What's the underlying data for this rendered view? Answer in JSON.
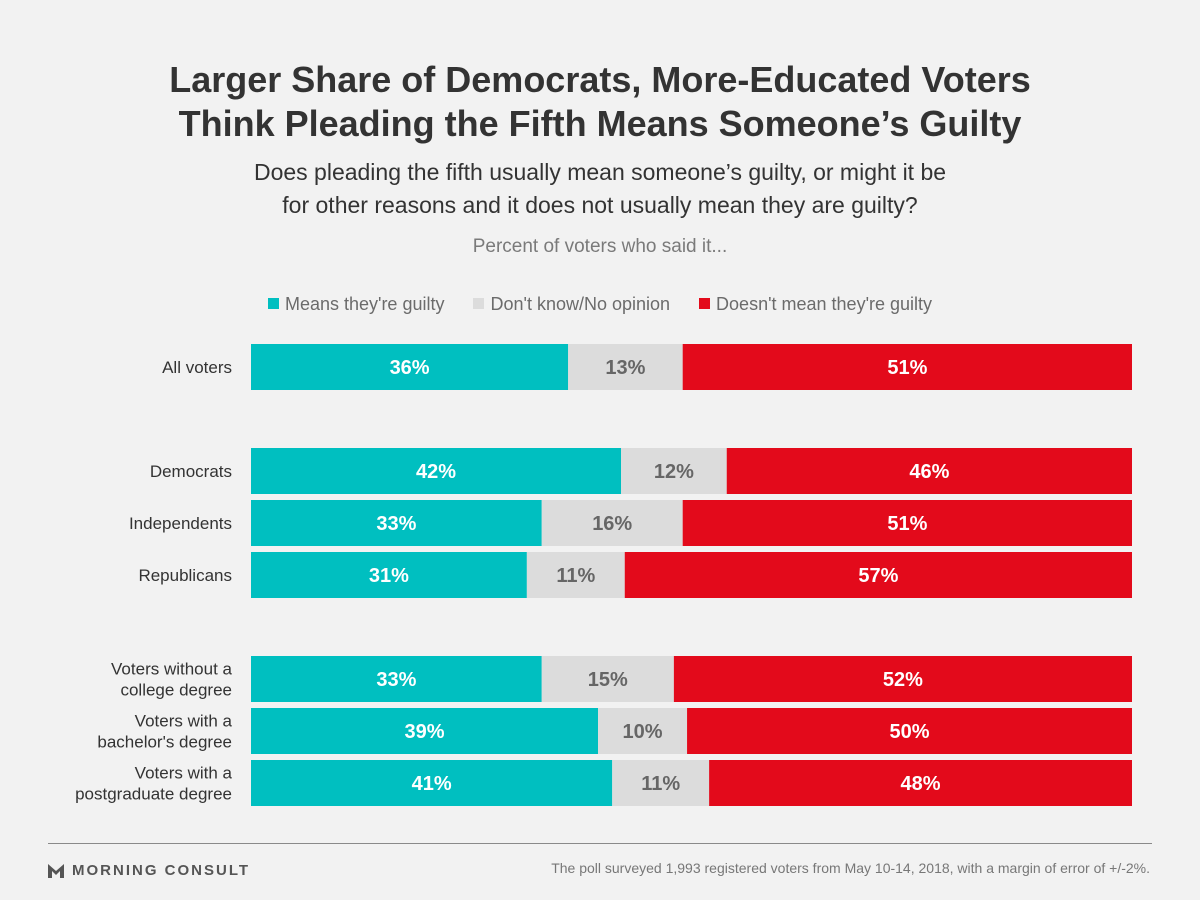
{
  "title_lines": [
    "Larger Share of Democrats, More-Educated Voters",
    "Think Pleading the Fifth Means Someone’s Guilty"
  ],
  "subtitle_lines": [
    "Does pleading the fifth usually mean someone’s guilty, or might it be",
    "for other reasons and it does not usually mean they are guilty?"
  ],
  "note": "Percent of voters who said it...",
  "legend": [
    {
      "label": "Means they're guilty",
      "color": "#00bfc0"
    },
    {
      "label": "Don't know/No opinion",
      "color": "#dcdcdc"
    },
    {
      "label": "Doesn't mean they're guilty",
      "color": "#e30a1b"
    }
  ],
  "chart_data": {
    "type": "bar",
    "orientation": "horizontal",
    "stacked": "100%",
    "categories": [
      [
        "All voters"
      ],
      [
        "Democrats"
      ],
      [
        "Independents"
      ],
      [
        "Republicans"
      ],
      [
        "Voters without a",
        "college degree"
      ],
      [
        "Voters with a",
        "bachelor's degree"
      ],
      [
        "Voters with a",
        "postgraduate degree"
      ]
    ],
    "groups": [
      [
        0
      ],
      [
        1,
        2,
        3
      ],
      [
        4,
        5,
        6
      ]
    ],
    "series": [
      {
        "name": "Means they're guilty",
        "color": "#00bfc0",
        "label_color": "#ffffff",
        "values": [
          36,
          42,
          33,
          31,
          33,
          39,
          41
        ]
      },
      {
        "name": "Don't know/No opinion",
        "color": "#dcdcdc",
        "label_color": "#666666",
        "values": [
          13,
          12,
          16,
          11,
          15,
          10,
          11
        ]
      },
      {
        "name": "Doesn't mean they're guilty",
        "color": "#e30a1b",
        "label_color": "#ffffff",
        "values": [
          51,
          46,
          51,
          57,
          52,
          50,
          48
        ]
      }
    ],
    "value_suffix": "%",
    "legend_position": "top",
    "grid": false
  },
  "footer": {
    "brand": "MORNING CONSULT",
    "note": "The poll surveyed 1,993 registered voters from May 10-14, 2018, with a margin of error of +/-2%."
  }
}
